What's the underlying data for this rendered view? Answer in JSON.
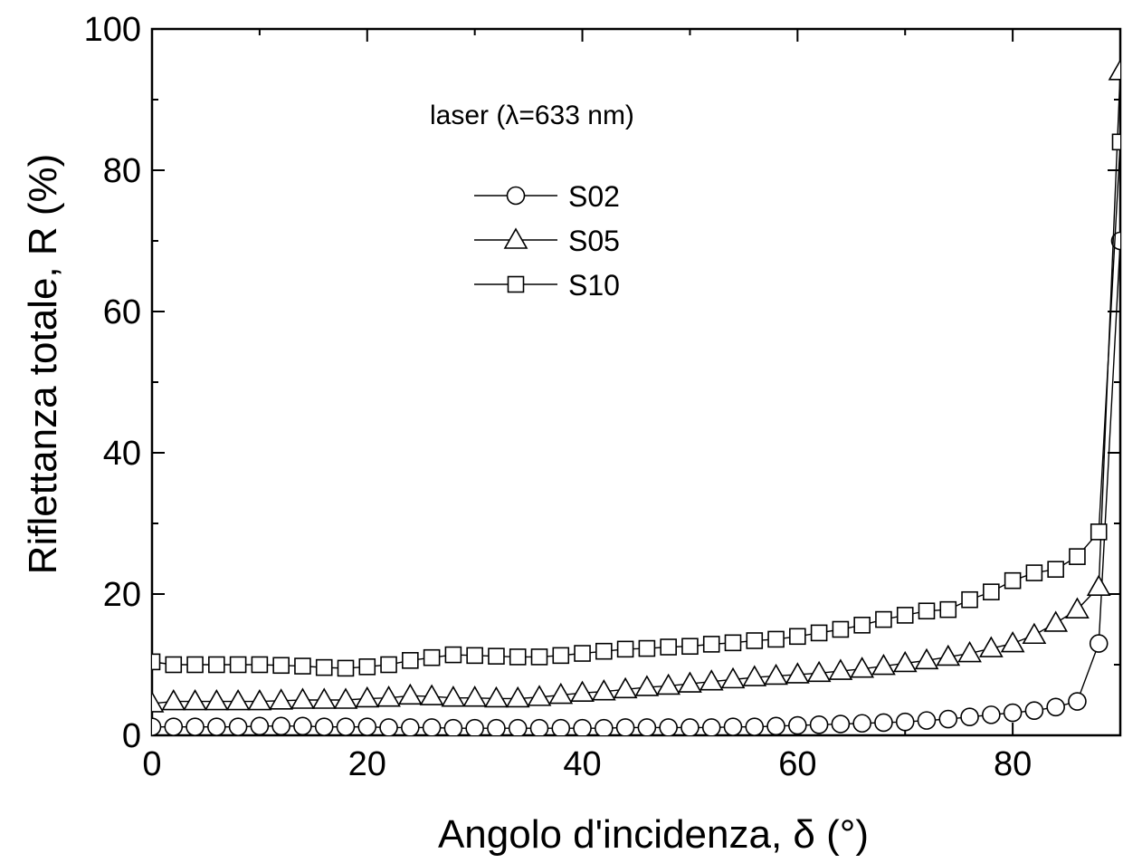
{
  "chart_data": {
    "type": "scatter",
    "title": "",
    "annotation": "laser (λ=633 nm)",
    "xlabel": "Angolo d'incidenza, δ (°)",
    "ylabel": "Riflettanza totale, R (%)",
    "xlim": [
      0,
      90
    ],
    "ylim": [
      0,
      100
    ],
    "xticks": [
      0,
      20,
      40,
      60,
      80
    ],
    "yticks": [
      0,
      20,
      40,
      60,
      80,
      100
    ],
    "xtick_labels": [
      "0",
      "20",
      "40",
      "60",
      "80"
    ],
    "ytick_labels": [
      "0",
      "20",
      "40",
      "60",
      "80",
      "100"
    ],
    "grid": false,
    "legend_position": "upper-center",
    "series": [
      {
        "name": "S02",
        "marker": "circle",
        "x": [
          0,
          2,
          4,
          6,
          8,
          10,
          12,
          14,
          16,
          18,
          20,
          22,
          24,
          26,
          28,
          30,
          32,
          34,
          36,
          38,
          40,
          42,
          44,
          46,
          48,
          50,
          52,
          54,
          56,
          58,
          60,
          62,
          64,
          66,
          68,
          70,
          72,
          74,
          76,
          78,
          80,
          82,
          84,
          86,
          88,
          90
        ],
        "y": [
          1.2,
          1.2,
          1.2,
          1.2,
          1.2,
          1.3,
          1.3,
          1.3,
          1.2,
          1.2,
          1.2,
          1.1,
          1.1,
          1.1,
          1.0,
          1.0,
          1.0,
          1.0,
          1.0,
          1.0,
          1.0,
          1.0,
          1.1,
          1.1,
          1.1,
          1.1,
          1.1,
          1.2,
          1.2,
          1.3,
          1.4,
          1.5,
          1.6,
          1.7,
          1.8,
          1.9,
          2.1,
          2.3,
          2.6,
          2.9,
          3.2,
          3.5,
          4.0,
          4.8,
          13.0,
          70.0
        ]
      },
      {
        "name": "S05",
        "marker": "triangle",
        "x": [
          0,
          2,
          4,
          6,
          8,
          10,
          12,
          14,
          16,
          18,
          20,
          22,
          24,
          26,
          28,
          30,
          32,
          34,
          36,
          38,
          40,
          42,
          44,
          46,
          48,
          50,
          52,
          54,
          56,
          58,
          60,
          62,
          64,
          66,
          68,
          70,
          72,
          74,
          76,
          78,
          80,
          82,
          84,
          86,
          88,
          90
        ],
        "y": [
          4.5,
          4.8,
          4.8,
          4.8,
          4.8,
          4.8,
          4.9,
          5.0,
          5.0,
          5.0,
          5.2,
          5.3,
          5.6,
          5.5,
          5.3,
          5.3,
          5.2,
          5.2,
          5.4,
          5.7,
          6.0,
          6.2,
          6.5,
          6.8,
          7.0,
          7.3,
          7.6,
          7.9,
          8.2,
          8.4,
          8.6,
          8.8,
          9.1,
          9.4,
          9.8,
          10.2,
          10.6,
          11.1,
          11.6,
          12.3,
          13.0,
          14.2,
          15.9,
          17.8,
          21.0,
          94.0
        ]
      },
      {
        "name": "S10",
        "marker": "square",
        "x": [
          0,
          2,
          4,
          6,
          8,
          10,
          12,
          14,
          16,
          18,
          20,
          22,
          24,
          26,
          28,
          30,
          32,
          34,
          36,
          38,
          40,
          42,
          44,
          46,
          48,
          50,
          52,
          54,
          56,
          58,
          60,
          62,
          64,
          66,
          68,
          70,
          72,
          74,
          76,
          78,
          80,
          82,
          84,
          86,
          88,
          90
        ],
        "y": [
          10.4,
          10.0,
          10.0,
          10.0,
          10.0,
          10.0,
          9.9,
          9.8,
          9.6,
          9.5,
          9.7,
          10.0,
          10.6,
          11.0,
          11.4,
          11.3,
          11.2,
          11.1,
          11.1,
          11.3,
          11.6,
          11.9,
          12.2,
          12.3,
          12.5,
          12.6,
          12.9,
          13.1,
          13.4,
          13.6,
          14.0,
          14.5,
          15.0,
          15.6,
          16.4,
          17.0,
          17.6,
          17.8,
          19.2,
          20.3,
          21.9,
          23.0,
          23.5,
          25.3,
          28.8,
          84.0
        ]
      }
    ]
  }
}
